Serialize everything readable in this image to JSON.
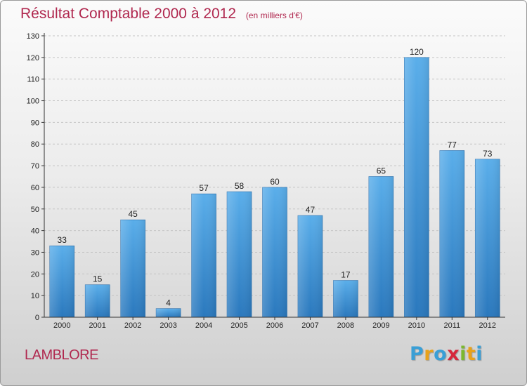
{
  "header": {
    "title": "Résultat Comptable 2000 à 2012",
    "subtitle": "(en milliers d'€)"
  },
  "footer": {
    "commune": "LAMBLORE",
    "brand_letters": [
      "P",
      "r",
      "o",
      "x",
      "i",
      "t",
      "i"
    ],
    "brand_colors": [
      "#3a9fd6",
      "#e8a21a",
      "#3a9fd6",
      "#d6263b",
      "#7cb82f",
      "#e8a21a",
      "#3a9fd6"
    ]
  },
  "chart_data": {
    "type": "bar",
    "title": "Résultat Comptable 2000 à 2012",
    "subtitle": "(en milliers d'€)",
    "categories": [
      "2000",
      "2001",
      "2002",
      "2003",
      "2004",
      "2005",
      "2006",
      "2007",
      "2008",
      "2009",
      "2010",
      "2011",
      "2012"
    ],
    "values": [
      33,
      15,
      45,
      4,
      57,
      58,
      60,
      47,
      17,
      65,
      120,
      77,
      73
    ],
    "ylim": [
      0,
      130
    ],
    "yticks": [
      0,
      10,
      20,
      30,
      40,
      50,
      60,
      70,
      80,
      90,
      100,
      110,
      120,
      130
    ],
    "grid": "horizontal-dashed",
    "bar_color_top": "#5aaeea",
    "bar_color_bottom": "#2a78bd",
    "data_labels": true
  }
}
